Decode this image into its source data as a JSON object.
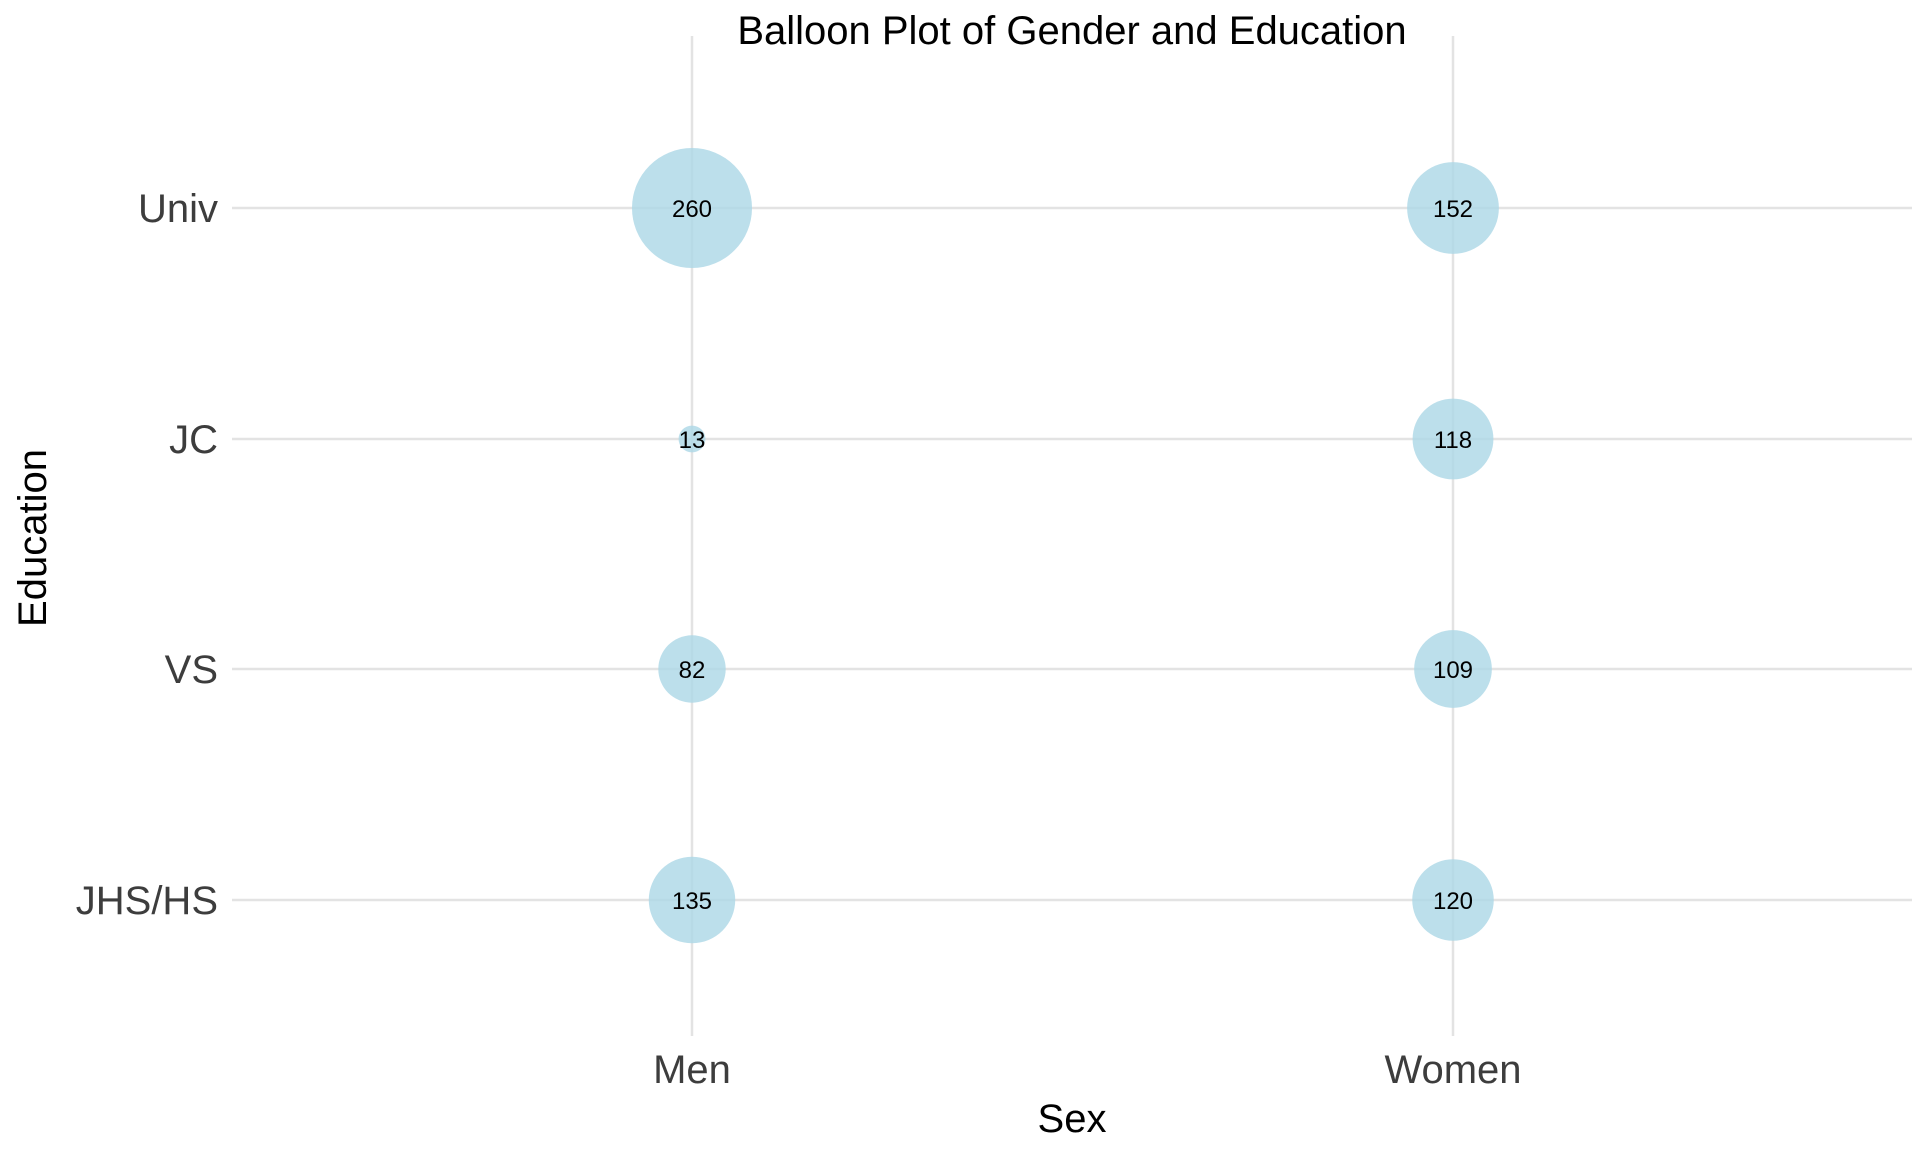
{
  "chart_data": {
    "type": "balloon",
    "title": "Balloon Plot of Gender and Education",
    "xlabel": "Sex",
    "ylabel": "Education",
    "x_categories": [
      "Men",
      "Women"
    ],
    "y_categories": [
      "JHS/HS",
      "VS",
      "JC",
      "Univ"
    ],
    "cells": [
      {
        "x": "Men",
        "y": "Univ",
        "value": 260
      },
      {
        "x": "Women",
        "y": "Univ",
        "value": 152
      },
      {
        "x": "Men",
        "y": "JC",
        "value": 13
      },
      {
        "x": "Women",
        "y": "JC",
        "value": 118
      },
      {
        "x": "Men",
        "y": "VS",
        "value": 82
      },
      {
        "x": "Women",
        "y": "VS",
        "value": 109
      },
      {
        "x": "Men",
        "y": "JHS/HS",
        "value": 135
      },
      {
        "x": "Women",
        "y": "JHS/HS",
        "value": 120
      }
    ],
    "grid": true,
    "legend": "none",
    "colors": {
      "balloon": "#add8e6",
      "grid": "#e3e3e3"
    }
  }
}
